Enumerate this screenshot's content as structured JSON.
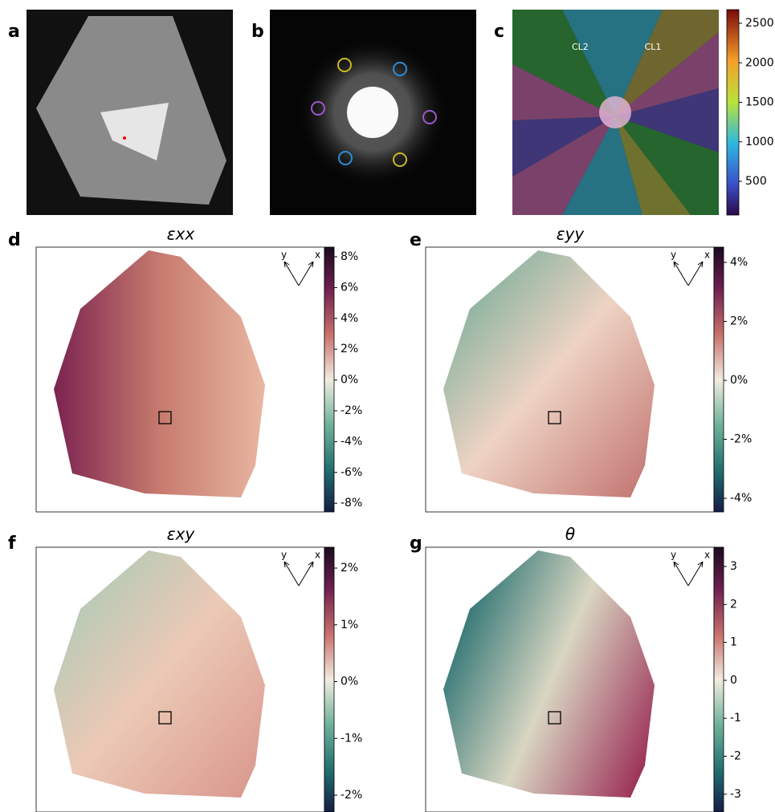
{
  "panels": {
    "a": {
      "label": "a"
    },
    "b": {
      "label": "b"
    },
    "c": {
      "label": "c",
      "annotations": [
        "CL2",
        "CL1"
      ],
      "colorbar_ticks": [
        "500",
        "1000",
        "1500",
        "2000",
        "2500"
      ]
    },
    "d": {
      "label": "d",
      "title": "εxx",
      "axes": [
        "y",
        "x"
      ],
      "colorbar_ticks": [
        "8%",
        "6%",
        "4%",
        "2%",
        "0%",
        "-2%",
        "-4%",
        "-6%",
        "-8%"
      ]
    },
    "e": {
      "label": "e",
      "title": "εyy",
      "axes": [
        "y",
        "x"
      ],
      "colorbar_ticks": [
        "4%",
        "2%",
        "0%",
        "-2%",
        "-4%"
      ]
    },
    "f": {
      "label": "f",
      "title": "εxy",
      "axes": [
        "y",
        "x"
      ],
      "colorbar_ticks": [
        "2%",
        "1%",
        "0%",
        "-1%",
        "-2%"
      ]
    },
    "g": {
      "label": "g",
      "title": "θ",
      "axes": [
        "y",
        "x"
      ],
      "colorbar_ticks": [
        "3",
        "2",
        "1",
        "0",
        "-1",
        "-2",
        "-3"
      ]
    }
  }
}
